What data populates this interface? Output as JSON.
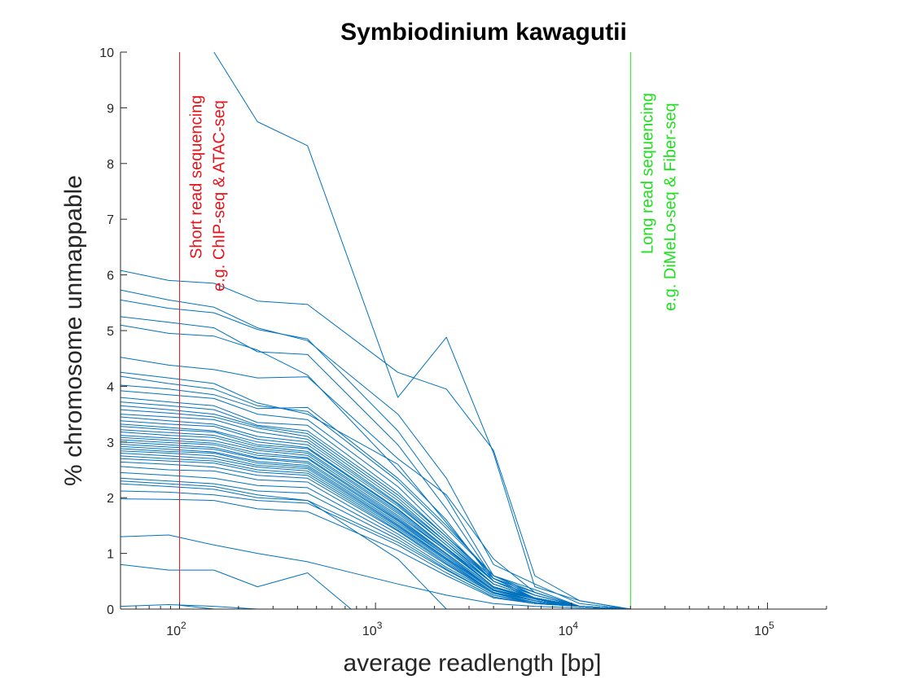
{
  "chart_data": {
    "type": "line",
    "title": "Symbiodinium kawagutii",
    "xlabel": "average readlength [bp]",
    "ylabel": "% chromosome unmappable",
    "x_scale": "log",
    "xlim": [
      50,
      200000
    ],
    "ylim": [
      0,
      10
    ],
    "y_ticks": [
      "0",
      "1",
      "2",
      "3",
      "4",
      "5",
      "6",
      "7",
      "8",
      "9",
      "10"
    ],
    "x_ticks": [
      {
        "value": 100,
        "base": "10",
        "exp": "2"
      },
      {
        "value": 1000,
        "base": "10",
        "exp": "3"
      },
      {
        "value": 10000,
        "base": "10",
        "exp": "4"
      },
      {
        "value": 100000,
        "base": "10",
        "exp": "5"
      }
    ],
    "grid": false,
    "series_color": "#0072bd",
    "x": [
      50,
      88,
      150,
      250,
      450,
      1300,
      2300,
      4000,
      6500,
      11000,
      20000
    ],
    "series": [
      {
        "values": [
          null,
          null,
          10,
          8.75,
          8.32,
          3.8,
          4.88,
          2.8,
          0.4,
          0.15,
          0
        ]
      },
      {
        "values": [
          6.08,
          5.9,
          5.85,
          5.53,
          5.47,
          4.25,
          3.95,
          2.85,
          0.6,
          0.15,
          0
        ]
      },
      {
        "values": [
          5.73,
          5.55,
          5.42,
          5.05,
          4.82,
          3.5,
          2.35,
          0.8,
          0.45,
          0.1,
          0
        ]
      },
      {
        "values": [
          5.55,
          5.4,
          5.32,
          5.02,
          4.85,
          3.2,
          2.0,
          0.6,
          0.35,
          0.05,
          0
        ]
      },
      {
        "values": [
          5.25,
          5.15,
          5.05,
          4.62,
          4.57,
          2.95,
          1.8,
          0.55,
          0.3,
          0.05,
          0
        ]
      },
      {
        "values": [
          5.1,
          4.95,
          4.9,
          4.65,
          4.2,
          2.5,
          1.6,
          0.5,
          0.25,
          0.05,
          0
        ]
      },
      {
        "values": [
          4.52,
          4.38,
          4.3,
          4.15,
          4.17,
          2.7,
          2.05,
          0.9,
          0.3,
          0.05,
          0
        ]
      },
      {
        "values": [
          4.25,
          4.15,
          4.05,
          3.7,
          3.5,
          2.6,
          1.55,
          0.55,
          0.25,
          0.05,
          0
        ]
      },
      {
        "values": [
          4.18,
          4.05,
          3.95,
          3.65,
          3.55,
          2.3,
          1.45,
          0.6,
          0.3,
          0.05,
          0
        ]
      },
      {
        "values": [
          4.02,
          3.95,
          3.85,
          3.6,
          3.62,
          2.35,
          1.5,
          0.6,
          0.25,
          0.05,
          0
        ]
      },
      {
        "values": [
          3.92,
          3.85,
          3.78,
          3.5,
          3.4,
          2.2,
          1.35,
          0.5,
          0.2,
          0.05,
          0
        ]
      },
      {
        "values": [
          3.8,
          3.72,
          3.65,
          3.35,
          3.3,
          2.1,
          1.3,
          0.55,
          0.2,
          0.05,
          0
        ]
      },
      {
        "values": [
          3.72,
          3.65,
          3.58,
          3.3,
          3.2,
          2.05,
          1.3,
          0.5,
          0.2,
          0.05,
          0
        ]
      },
      {
        "values": [
          3.65,
          3.58,
          3.5,
          3.28,
          3.15,
          2.0,
          1.25,
          0.5,
          0.2,
          0.05,
          0
        ]
      },
      {
        "values": [
          3.58,
          3.52,
          3.45,
          3.25,
          3.1,
          1.95,
          1.2,
          0.45,
          0.2,
          0.05,
          0
        ]
      },
      {
        "values": [
          3.5,
          3.45,
          3.4,
          3.18,
          3.05,
          1.9,
          1.2,
          0.5,
          0.2,
          0.05,
          0
        ]
      },
      {
        "values": [
          3.45,
          3.38,
          3.32,
          3.1,
          3.0,
          1.88,
          1.15,
          0.45,
          0.2,
          0.05,
          0
        ]
      },
      {
        "values": [
          3.38,
          3.32,
          3.28,
          3.05,
          2.95,
          1.85,
          1.15,
          0.45,
          0.2,
          0.05,
          0
        ]
      },
      {
        "values": [
          3.32,
          3.26,
          3.2,
          3.0,
          2.9,
          1.8,
          1.1,
          0.4,
          0.2,
          0.05,
          0
        ]
      },
      {
        "values": [
          3.28,
          3.22,
          3.18,
          2.95,
          2.88,
          1.78,
          1.1,
          0.45,
          0.2,
          0.05,
          0
        ]
      },
      {
        "values": [
          3.22,
          3.17,
          3.12,
          2.92,
          2.83,
          1.75,
          1.08,
          0.4,
          0.18,
          0.05,
          0
        ]
      },
      {
        "values": [
          3.18,
          3.12,
          3.08,
          2.88,
          2.8,
          1.72,
          1.05,
          0.4,
          0.2,
          0.05,
          0
        ]
      },
      {
        "values": [
          3.12,
          3.07,
          3.02,
          2.85,
          2.76,
          1.68,
          1.05,
          0.4,
          0.18,
          0.05,
          0
        ]
      },
      {
        "values": [
          3.08,
          3.03,
          2.98,
          2.8,
          2.72,
          1.65,
          1.0,
          0.38,
          0.18,
          0.05,
          0
        ]
      },
      {
        "values": [
          3.04,
          2.99,
          2.95,
          2.76,
          2.7,
          1.62,
          1.0,
          0.38,
          0.18,
          0.05,
          0
        ]
      },
      {
        "values": [
          3.0,
          2.95,
          2.9,
          2.72,
          2.65,
          1.6,
          0.98,
          0.35,
          0.18,
          0.05,
          0
        ]
      },
      {
        "values": [
          2.96,
          2.91,
          2.87,
          2.7,
          2.62,
          1.58,
          0.95,
          0.35,
          0.15,
          0.05,
          0
        ]
      },
      {
        "values": [
          2.92,
          2.87,
          2.82,
          2.65,
          2.58,
          1.55,
          0.95,
          0.35,
          0.15,
          0.05,
          0
        ]
      },
      {
        "values": [
          2.88,
          2.83,
          2.8,
          2.62,
          2.55,
          1.52,
          0.92,
          0.35,
          0.15,
          0.05,
          0
        ]
      },
      {
        "values": [
          2.84,
          2.8,
          2.75,
          2.58,
          2.52,
          1.5,
          0.9,
          0.33,
          0.15,
          0.05,
          0
        ]
      },
      {
        "values": [
          2.8,
          2.75,
          2.7,
          2.55,
          2.48,
          1.48,
          0.9,
          0.33,
          0.15,
          0.05,
          0
        ]
      },
      {
        "values": [
          2.75,
          2.7,
          2.66,
          2.5,
          2.44,
          1.45,
          0.88,
          0.3,
          0.15,
          0.05,
          0
        ]
      },
      {
        "values": [
          2.7,
          2.66,
          2.62,
          2.46,
          2.4,
          1.42,
          0.85,
          0.3,
          0.15,
          0.05,
          0
        ]
      },
      {
        "values": [
          2.64,
          2.6,
          2.55,
          2.4,
          2.35,
          1.4,
          0.82,
          0.3,
          0.12,
          0.05,
          0
        ]
      },
      {
        "values": [
          2.56,
          2.5,
          2.48,
          2.32,
          2.28,
          1.35,
          0.8,
          0.28,
          0.12,
          0.05,
          0
        ]
      },
      {
        "values": [
          2.45,
          2.4,
          2.35,
          2.22,
          2.18,
          1.3,
          0.75,
          0.28,
          0.12,
          0.05,
          0
        ]
      },
      {
        "values": [
          2.35,
          2.3,
          2.25,
          2.12,
          2.08,
          1.25,
          0.72,
          0.25,
          0.12,
          0.05,
          0
        ]
      },
      {
        "values": [
          2.3,
          2.25,
          2.2,
          2.05,
          1.95,
          1.2,
          0.7,
          0.25,
          0.1,
          0.05,
          0
        ]
      },
      {
        "values": [
          2.25,
          2.2,
          2.15,
          2.0,
          1.95,
          0.9,
          0.0,
          null,
          null,
          null,
          null
        ]
      },
      {
        "values": [
          2.12,
          2.1,
          2.05,
          1.95,
          1.9,
          1.15,
          0.65,
          0.22,
          0.1,
          0.05,
          0
        ]
      },
      {
        "values": [
          1.98,
          1.97,
          1.95,
          1.8,
          1.75,
          1.05,
          0.6,
          0.2,
          0.1,
          0.05,
          0
        ]
      },
      {
        "values": [
          1.3,
          1.33,
          1.15,
          1.0,
          0.85,
          0.45,
          0.25,
          0.1,
          0.05,
          0.02,
          0
        ]
      },
      {
        "values": [
          0.8,
          0.7,
          0.7,
          0.4,
          0.65,
          null,
          null,
          null,
          null,
          null,
          null
        ]
      },
      {
        "values": [
          0.05,
          0.08,
          0.05,
          0.0,
          0.0,
          0.0,
          0.0,
          0.0,
          0.0,
          0.0,
          0
        ]
      }
    ],
    "drop_series": {
      "x": [
        100,
        150
      ],
      "values": [
        0.07,
        0.0
      ]
    },
    "drop_series_2": {
      "x": [
        450,
        750
      ],
      "values": [
        0.65,
        0.0
      ]
    },
    "vlines": [
      {
        "x": 100,
        "color": "#e8141b",
        "lines": [
          "Short read sequencing",
          "e.g. ChIP-seq & ATAC-seq"
        ]
      },
      {
        "x": 20000,
        "color": "#1ee01e",
        "lines": [
          "Long read sequencing",
          "e.g. DiMeLo-seq & Fiber-seq"
        ]
      }
    ]
  }
}
